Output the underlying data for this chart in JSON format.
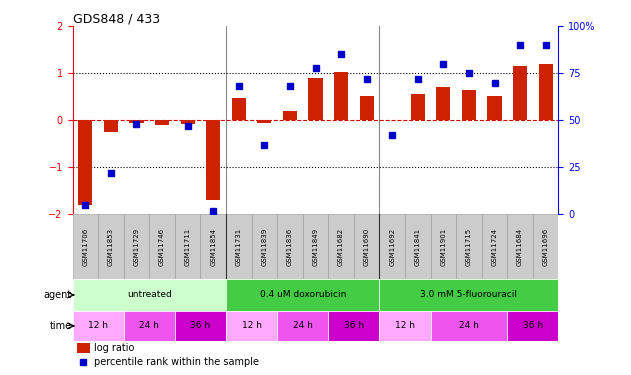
{
  "title": "GDS848 / 433",
  "samples": [
    "GSM11706",
    "GSM11853",
    "GSM11729",
    "GSM11746",
    "GSM11711",
    "GSM11854",
    "GSM11731",
    "GSM11839",
    "GSM11836",
    "GSM11849",
    "GSM11682",
    "GSM11690",
    "GSM11692",
    "GSM11841",
    "GSM11901",
    "GSM11715",
    "GSM11724",
    "GSM11684",
    "GSM11696"
  ],
  "log_ratio": [
    -1.8,
    -0.25,
    -0.05,
    -0.1,
    -0.07,
    -1.7,
    0.48,
    -0.05,
    0.2,
    0.9,
    1.02,
    0.52,
    0.0,
    0.55,
    0.7,
    0.65,
    0.52,
    1.15,
    1.2
  ],
  "pct_rank": [
    5,
    22,
    48,
    null,
    47,
    2,
    68,
    37,
    68,
    78,
    85,
    72,
    42,
    72,
    80,
    75,
    70,
    90,
    90
  ],
  "ylim_left": [
    -2,
    2
  ],
  "ylim_right": [
    0,
    100
  ],
  "yticks_left": [
    -2,
    -1,
    0,
    1,
    2
  ],
  "yticks_right": [
    0,
    25,
    50,
    75,
    100
  ],
  "yticklabels_right": [
    "0",
    "25",
    "50",
    "75",
    "100%"
  ],
  "bar_color": "#cc2200",
  "dot_color": "#0000cc",
  "agent_groups": [
    {
      "label": "untreated",
      "start": 0,
      "end": 6,
      "color": "#ccffcc"
    },
    {
      "label": "0.4 uM doxorubicin",
      "start": 6,
      "end": 12,
      "color": "#44cc44"
    },
    {
      "label": "3.0 mM 5-fluorouracil",
      "start": 12,
      "end": 19,
      "color": "#44cc44"
    }
  ],
  "time_groups": [
    {
      "label": "12 h",
      "start": 0,
      "end": 2,
      "color": "#ffaaff"
    },
    {
      "label": "24 h",
      "start": 2,
      "end": 4,
      "color": "#ee55ee"
    },
    {
      "label": "36 h",
      "start": 4,
      "end": 6,
      "color": "#cc00cc"
    },
    {
      "label": "12 h",
      "start": 6,
      "end": 8,
      "color": "#ffaaff"
    },
    {
      "label": "24 h",
      "start": 8,
      "end": 10,
      "color": "#ee55ee"
    },
    {
      "label": "36 h",
      "start": 10,
      "end": 12,
      "color": "#cc00cc"
    },
    {
      "label": "12 h",
      "start": 12,
      "end": 14,
      "color": "#ffaaff"
    },
    {
      "label": "24 h",
      "start": 14,
      "end": 17,
      "color": "#ee55ee"
    },
    {
      "label": "36 h",
      "start": 17,
      "end": 19,
      "color": "#cc00cc"
    }
  ]
}
